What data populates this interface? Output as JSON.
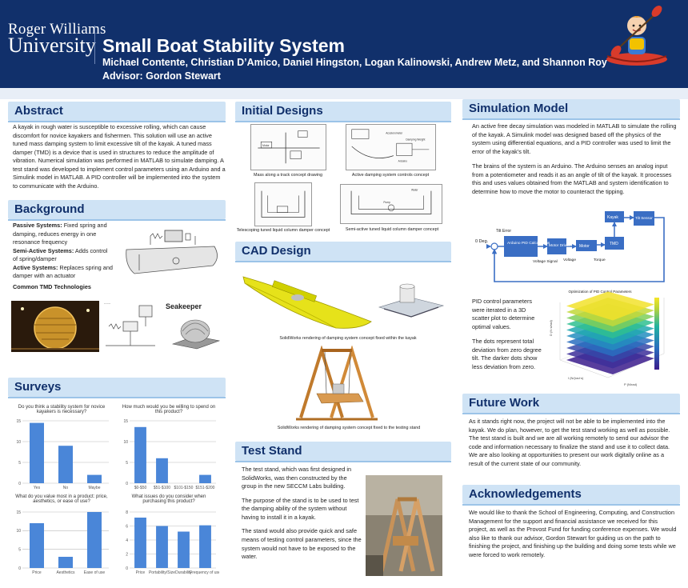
{
  "header": {
    "logo_line1": "Roger Williams",
    "logo_line2": "University",
    "title": "Small Boat Stability System",
    "authors": "Michael Contente, Christian D’Amico, Daniel Hingston, Logan Kalinowski, Andrew Metz, and Shannon Roy",
    "advisor": "Advisor: Gordon Stewart"
  },
  "abstract": {
    "heading": "Abstract",
    "text": "A kayak in rough water is susceptible to excessive rolling, which can cause discomfort for novice kayakers and fishermen. This solution will use an active tuned mass damping system to limit excessive tilt of the kayak. A tuned mass damper (TMD) is a device that is used in structures to reduce the amplitude of vibration. Numerical simulation was performed in MATLAB to simulate damping. A test stand was developed to implement control parameters using an Arduino and a Simulink model in MATLAB. A PID controller will be implemented into the system to communicate with the Arduino."
  },
  "background": {
    "heading": "Background",
    "passive_label": "Passive Systems:",
    "passive_text": " Fixed spring and damping, reduces energy in one resonance frequency",
    "semi_label": "Semi-Active Systems:",
    "semi_text": " Adds control of spring/damper",
    "active_label": "Active Systems:",
    "active_text": " Replaces spring and damper with an actuator",
    "common": "Common TMD Technologies",
    "seakeeper": "Seakeeper"
  },
  "surveys": {
    "heading": "Surveys"
  },
  "initial_designs": {
    "heading": "Initial Designs",
    "captions": [
      "Mass along a track concept drawing",
      "Active damping system controls concept",
      "Telescoping tuned liquid column damper concept",
      "Semi-active tuned liquid column damper concept"
    ],
    "sketch_labels": [
      "Motor",
      "Arduino",
      "Accelerometer",
      "Damping Weight",
      "Water",
      "Pump"
    ]
  },
  "cad": {
    "heading": "CAD Design",
    "caption1": "SolidWorks rendering of damping system concept fixed within the kayak",
    "caption2": "SolidWorks rendering of damping system concept fixed to the testing stand"
  },
  "test_stand": {
    "heading": "Test Stand",
    "p1": "The test stand, which was first designed in SolidWorks, was then constructed by the group in the new SECCM Labs building.",
    "p2": "The purpose of the stand is to be used to test the damping ability of the system without having to install it in a kayak.",
    "p3": "The stand would also provide quick and safe means of testing control parameters, since the system would not have to be exposed to the water."
  },
  "simulation": {
    "heading": "Simulation Model",
    "p1": "An active free decay simulation was modeled in MATLAB to simulate the rolling of the kayak. A Simulink model was designed based off the physics of the system using differential equations, and a PID controller was used to limit the error of the kayak’s tilt.",
    "p2": "The brains of the system is an Arduino. The Arduino senses an analog input from a potentiometer and reads it as an angle of tilt of the kayak. It processes this and uses values obtained from the MATLAB and system identification to determine how to move the motor to counteract the tipping.",
    "p3": "PID control parameters were iterated in a 3D scatter plot to determine optimal values.",
    "p4": "The dots represent total deviation from zero degree tilt. The darker dots show less deviation from zero.",
    "block": {
      "zero_deg": "0 Deg.",
      "tilt_error": "Tilt Error",
      "pid": "Arduino PID Calculations",
      "driver": "Motor Driver",
      "motor": "Motor",
      "tmd": "TMD",
      "kayak": "Kayak",
      "tilt_sensor": "Tilt Sensor",
      "control_signal": "Voltage Signal",
      "voltage": "Voltage",
      "torque": "Torque"
    },
    "plot_title": "Optimization of PID Control Parameters",
    "plot_xlabel": "P (N/rad)",
    "plot_ylabel": "I (N/(rad·s)",
    "plot_zlabel": "D (N·s/rad)"
  },
  "future": {
    "heading": "Future Work",
    "text": "As it stands right now, the project will not be able to be implemented into the kayak. We do plan, however, to get the test stand working as well as possible. The test stand is built and we are all working remotely to send our advisor the code and information necessary to finalize the stand and use it to collect data. We are also looking at opportunities to present our work digitally online as a result of the current state of our community."
  },
  "ack": {
    "heading": "Acknowledgements",
    "text": "We would like to thank the School of Engineering, Computing, and Construction Management for the support and financial assistance we received for this project, as well as the Provost Fund for funding conference expenses. We would also like to thank our advisor, Gordon Stewart for guiding us on the path to finishing the project, and finishing up the building and doing some tests while we were forced to work remotely."
  },
  "chart_data": [
    {
      "type": "bar",
      "title": "Do you think a stability system for novice kayakers is necessary?",
      "categories": [
        "Yes",
        "No",
        "Maybe"
      ],
      "values": [
        14.5,
        9,
        2
      ],
      "ylim": [
        0,
        15
      ],
      "yticks": [
        0,
        5,
        10,
        15
      ],
      "color": "#4a86d8"
    },
    {
      "type": "bar",
      "title": "How much would you be willing to spend on this product?",
      "categories": [
        "$0-$50",
        "$51-$100",
        "$101-$150",
        "$151-$200"
      ],
      "values": [
        13.5,
        6,
        0,
        2
      ],
      "ylim": [
        0,
        15
      ],
      "yticks": [
        0,
        5,
        10,
        15
      ],
      "color": "#4a86d8"
    },
    {
      "type": "bar",
      "title": "What do you value most in a product: price, aesthetics, or ease of use?",
      "categories": [
        "Price",
        "Aesthetics",
        "Ease of use"
      ],
      "values": [
        12,
        3,
        15
      ],
      "ylim": [
        0,
        15
      ],
      "yticks": [
        0,
        5,
        10,
        15
      ],
      "color": "#4a86d8"
    },
    {
      "type": "bar",
      "title": "What issues do you consider when purchasing this product?",
      "categories": [
        "Price",
        "Portability/Size",
        "Durability",
        "Frequency of use"
      ],
      "values": [
        7.2,
        6,
        5.2,
        6.1
      ],
      "ylim": [
        0,
        8
      ],
      "yticks": [
        0,
        2,
        4,
        6,
        8
      ],
      "color": "#4a86d8"
    }
  ]
}
